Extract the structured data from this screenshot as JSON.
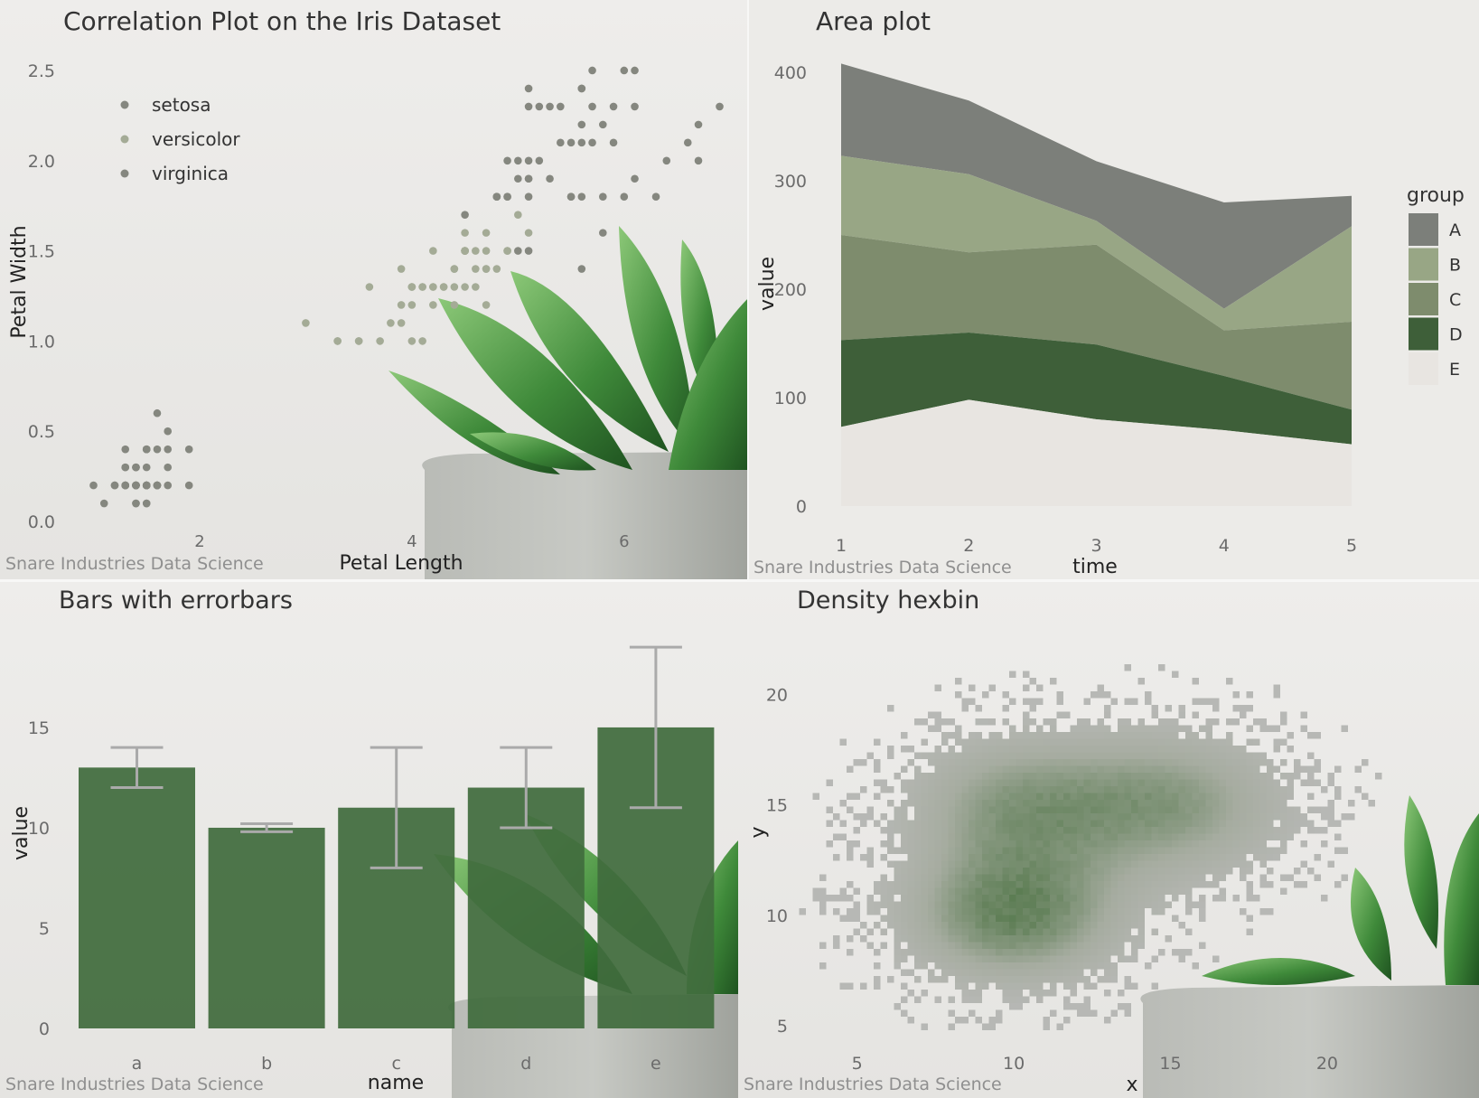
{
  "colors": {
    "background": "#ecebe8",
    "text": "#333333",
    "tick": "#6b6b6b",
    "caption": "#8f8f8f",
    "gridline": "#ffffff",
    "point_gray": "#85877f",
    "point_green": "#a4ab96",
    "area_A": "#7c7f7a",
    "area_B": "#98a685",
    "area_C": "#7e8c6d",
    "area_D": "#3e5f39",
    "area_E": "#e8e5e1",
    "bar_fill": "#416c3d",
    "errorbar": "#aaaaaa",
    "hex_low": "#b7b8b5",
    "hex_mid": "#a6aca0",
    "hex_high": "#5b7c52",
    "leaf_dark": "#2f6a2d",
    "leaf_light": "#75b466",
    "pot": "#b6b8b3"
  },
  "panels": {
    "scatter": {
      "caption": "Snare Industries Data Science"
    },
    "area": {
      "caption": "Snare Industries Data Science"
    },
    "bars": {
      "caption": "Snare Industries Data Science"
    },
    "hexbin": {
      "caption": "Snare Industries Data Science"
    }
  },
  "chart_data": [
    {
      "type": "scatter",
      "title": "Correlation Plot on the Iris Dataset",
      "xlabel": "Petal Length",
      "ylabel": "Petal Width",
      "xlim": [
        0.8,
        7.1
      ],
      "ylim": [
        0.0,
        2.55
      ],
      "x_ticks": [
        2,
        4,
        6
      ],
      "y_ticks": [
        "0.0",
        "0.5",
        "1.0",
        "1.5",
        "2.0",
        "2.5"
      ],
      "legend_position": "top-left",
      "series": [
        {
          "name": "setosa",
          "color": "#85877f",
          "points": [
            [
              1.4,
              0.2
            ],
            [
              1.4,
              0.2
            ],
            [
              1.3,
              0.2
            ],
            [
              1.5,
              0.2
            ],
            [
              1.4,
              0.2
            ],
            [
              1.7,
              0.4
            ],
            [
              1.4,
              0.3
            ],
            [
              1.5,
              0.2
            ],
            [
              1.4,
              0.2
            ],
            [
              1.5,
              0.1
            ],
            [
              1.5,
              0.2
            ],
            [
              1.6,
              0.2
            ],
            [
              1.4,
              0.1
            ],
            [
              1.1,
              0.1
            ],
            [
              1.2,
              0.2
            ],
            [
              1.5,
              0.4
            ],
            [
              1.3,
              0.4
            ],
            [
              1.4,
              0.3
            ],
            [
              1.7,
              0.3
            ],
            [
              1.5,
              0.3
            ],
            [
              1.7,
              0.2
            ],
            [
              1.5,
              0.4
            ],
            [
              1.0,
              0.2
            ],
            [
              1.7,
              0.5
            ],
            [
              1.9,
              0.2
            ],
            [
              1.6,
              0.2
            ],
            [
              1.6,
              0.4
            ],
            [
              1.5,
              0.2
            ],
            [
              1.4,
              0.2
            ],
            [
              1.6,
              0.2
            ],
            [
              1.6,
              0.2
            ],
            [
              1.5,
              0.4
            ],
            [
              1.5,
              0.1
            ],
            [
              1.4,
              0.2
            ],
            [
              1.5,
              0.2
            ],
            [
              1.2,
              0.2
            ],
            [
              1.3,
              0.2
            ],
            [
              1.4,
              0.1
            ],
            [
              1.3,
              0.2
            ],
            [
              1.5,
              0.2
            ],
            [
              1.3,
              0.3
            ],
            [
              1.3,
              0.3
            ],
            [
              1.3,
              0.2
            ],
            [
              1.6,
              0.6
            ],
            [
              1.9,
              0.4
            ],
            [
              1.4,
              0.3
            ],
            [
              1.6,
              0.2
            ],
            [
              1.4,
              0.2
            ],
            [
              1.5,
              0.2
            ],
            [
              1.4,
              0.2
            ]
          ]
        },
        {
          "name": "versicolor",
          "color": "#a4ab96",
          "points": [
            [
              4.7,
              1.4
            ],
            [
              4.5,
              1.5
            ],
            [
              4.9,
              1.5
            ],
            [
              4.0,
              1.3
            ],
            [
              4.6,
              1.5
            ],
            [
              4.5,
              1.3
            ],
            [
              4.7,
              1.6
            ],
            [
              3.3,
              1.0
            ],
            [
              4.6,
              1.3
            ],
            [
              3.9,
              1.4
            ],
            [
              3.5,
              1.0
            ],
            [
              4.2,
              1.5
            ],
            [
              4.0,
              1.0
            ],
            [
              4.7,
              1.4
            ],
            [
              3.6,
              1.3
            ],
            [
              4.4,
              1.4
            ],
            [
              4.5,
              1.5
            ],
            [
              4.1,
              1.0
            ],
            [
              4.5,
              1.5
            ],
            [
              3.9,
              1.1
            ],
            [
              4.8,
              1.8
            ],
            [
              4.0,
              1.3
            ],
            [
              4.9,
              1.5
            ],
            [
              4.7,
              1.2
            ],
            [
              4.3,
              1.3
            ],
            [
              4.4,
              1.4
            ],
            [
              4.8,
              1.4
            ],
            [
              5.0,
              1.7
            ],
            [
              4.5,
              1.5
            ],
            [
              3.5,
              1.0
            ],
            [
              3.8,
              1.1
            ],
            [
              3.7,
              1.0
            ],
            [
              3.9,
              1.2
            ],
            [
              5.1,
              1.6
            ],
            [
              4.5,
              1.5
            ],
            [
              4.5,
              1.6
            ],
            [
              4.7,
              1.5
            ],
            [
              4.4,
              1.3
            ],
            [
              4.1,
              1.3
            ],
            [
              4.0,
              1.3
            ],
            [
              4.4,
              1.2
            ],
            [
              4.6,
              1.4
            ],
            [
              4.0,
              1.2
            ],
            [
              3.3,
              1.0
            ],
            [
              4.2,
              1.3
            ],
            [
              4.2,
              1.2
            ],
            [
              4.2,
              1.3
            ],
            [
              4.3,
              1.3
            ],
            [
              3.0,
              1.1
            ],
            [
              4.1,
              1.3
            ]
          ]
        },
        {
          "name": "virginica",
          "color": "#85877f",
          "points": [
            [
              6.0,
              2.5
            ],
            [
              5.1,
              1.9
            ],
            [
              5.9,
              2.1
            ],
            [
              5.6,
              1.8
            ],
            [
              5.8,
              2.2
            ],
            [
              6.6,
              2.1
            ],
            [
              4.5,
              1.7
            ],
            [
              6.3,
              1.8
            ],
            [
              5.8,
              1.8
            ],
            [
              6.1,
              2.5
            ],
            [
              5.1,
              2.0
            ],
            [
              5.3,
              1.9
            ],
            [
              5.5,
              2.1
            ],
            [
              5.0,
              2.0
            ],
            [
              5.1,
              2.4
            ],
            [
              5.3,
              2.3
            ],
            [
              5.5,
              1.8
            ],
            [
              6.7,
              2.2
            ],
            [
              6.9,
              2.3
            ],
            [
              5.0,
              1.5
            ],
            [
              5.7,
              2.3
            ],
            [
              4.9,
              2.0
            ],
            [
              6.7,
              2.0
            ],
            [
              4.9,
              1.8
            ],
            [
              5.7,
              2.1
            ],
            [
              6.0,
              1.8
            ],
            [
              4.8,
              1.8
            ],
            [
              4.9,
              1.8
            ],
            [
              5.6,
              2.1
            ],
            [
              5.8,
              1.6
            ],
            [
              6.1,
              1.9
            ],
            [
              6.4,
              2.0
            ],
            [
              5.6,
              2.2
            ],
            [
              5.1,
              1.5
            ],
            [
              5.6,
              1.4
            ],
            [
              6.1,
              2.3
            ],
            [
              5.6,
              2.4
            ],
            [
              5.5,
              1.8
            ],
            [
              4.8,
              1.8
            ],
            [
              5.4,
              2.1
            ],
            [
              5.6,
              2.4
            ],
            [
              5.1,
              2.3
            ],
            [
              5.1,
              1.9
            ],
            [
              5.9,
              2.3
            ],
            [
              5.7,
              2.5
            ],
            [
              5.2,
              2.3
            ],
            [
              5.0,
              1.9
            ],
            [
              5.2,
              2.0
            ],
            [
              5.4,
              2.3
            ],
            [
              5.1,
              1.8
            ]
          ]
        }
      ]
    },
    {
      "type": "area",
      "title": "Area plot",
      "xlabel": "time",
      "ylabel": "value",
      "x": [
        1,
        2,
        3,
        4,
        5
      ],
      "xlim": [
        1,
        5
      ],
      "ylim": [
        0,
        410
      ],
      "y_ticks": [
        0,
        100,
        200,
        300,
        400
      ],
      "stacked": true,
      "legend_title": "group",
      "legend_position": "right",
      "series": [
        {
          "name": "A",
          "values": [
            85,
            68,
            55,
            98,
            28
          ]
        },
        {
          "name": "B",
          "values": [
            73,
            72,
            22,
            20,
            88
          ]
        },
        {
          "name": "C",
          "values": [
            97,
            74,
            92,
            42,
            81
          ]
        },
        {
          "name": "D",
          "values": [
            80,
            62,
            69,
            50,
            32
          ]
        },
        {
          "name": "E",
          "values": [
            73,
            98,
            80,
            70,
            57
          ]
        }
      ]
    },
    {
      "type": "bar",
      "title": "Bars with errorbars",
      "xlabel": "name",
      "ylabel": "value",
      "categories": [
        "a",
        "b",
        "c",
        "d",
        "e"
      ],
      "values": [
        13,
        10,
        11,
        12,
        15
      ],
      "error_low": [
        12,
        9.8,
        8,
        10,
        11
      ],
      "error_high": [
        14,
        10.2,
        14,
        14,
        19
      ],
      "ylim": [
        0,
        19.5
      ],
      "y_ticks": [
        0,
        5,
        10,
        15
      ]
    },
    {
      "type": "heatmap",
      "title": "Density hexbin",
      "xlabel": "x",
      "ylabel": "y",
      "xlim": [
        2.5,
        24.5
      ],
      "ylim": [
        4.6,
        23.2
      ],
      "x_ticks": [
        5,
        10,
        15,
        20
      ],
      "y_ticks": [
        5,
        10,
        15,
        20
      ],
      "clusters": [
        {
          "cx": 10,
          "cy": 10,
          "sx": 2.4,
          "sy": 2.1,
          "weight": 1.0
        },
        {
          "cx": 15,
          "cy": 15,
          "sx": 2.6,
          "sy": 2.3,
          "weight": 0.75
        },
        {
          "cx": 10,
          "cy": 15,
          "sx": 2.4,
          "sy": 2.2,
          "weight": 0.7
        }
      ]
    }
  ]
}
